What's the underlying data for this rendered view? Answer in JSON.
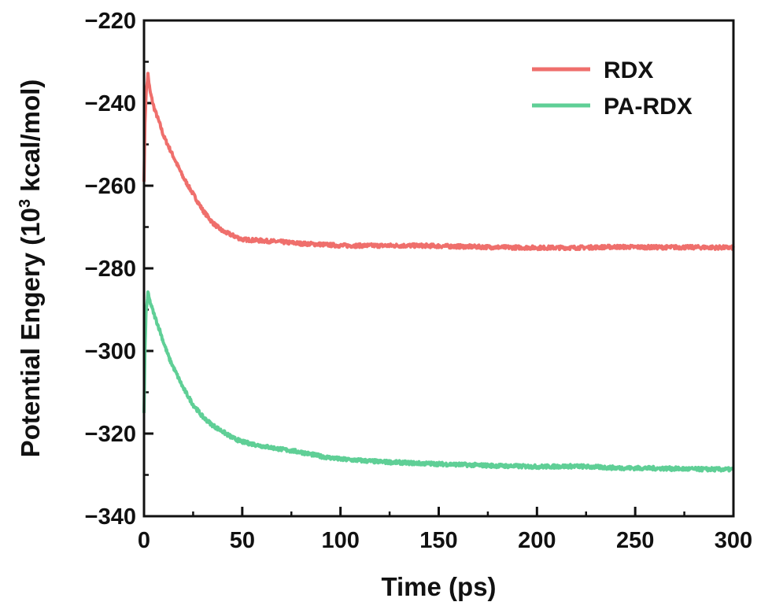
{
  "chart_data": {
    "type": "line",
    "xlabel": "Time (ps)",
    "ylabel": {
      "prefix": "Potential Engery (10",
      "sup": "3",
      "suffix": " kcal/mol)"
    },
    "xlim": [
      0,
      300
    ],
    "ylim": [
      -340,
      -220
    ],
    "xticks": [
      0,
      50,
      100,
      150,
      200,
      250,
      300
    ],
    "yticks": [
      -220,
      -240,
      -260,
      -280,
      -300,
      -320,
      -340
    ],
    "ytick_labels": [
      "−220",
      "−240",
      "−260",
      "−280",
      "−300",
      "−320",
      "−340"
    ],
    "grid": false,
    "legend_position": "top-right",
    "series": [
      {
        "name": "RDX",
        "color": "#ef6f6c",
        "x": [
          0,
          0.5,
          1,
          2,
          3,
          5,
          8,
          10,
          13,
          15,
          18,
          20,
          25,
          30,
          35,
          40,
          45,
          50,
          60,
          70,
          80,
          90,
          100,
          120,
          140,
          160,
          180,
          200,
          220,
          240,
          260,
          280,
          300
        ],
        "y": [
          -259,
          -245,
          -238,
          -233,
          -237,
          -241,
          -245,
          -248,
          -251,
          -253,
          -256,
          -258,
          -262,
          -266,
          -269,
          -271,
          -272,
          -273,
          -273.3,
          -273.6,
          -274,
          -274.2,
          -274.5,
          -274.5,
          -274.5,
          -274.7,
          -274.9,
          -275,
          -275,
          -274.8,
          -274.9,
          -274.9,
          -275
        ]
      },
      {
        "name": "PA-RDX",
        "color": "#5fcf96",
        "x": [
          0,
          0.5,
          1,
          2,
          3,
          5,
          8,
          10,
          13,
          15,
          18,
          20,
          25,
          30,
          35,
          40,
          45,
          50,
          60,
          70,
          80,
          90,
          100,
          120,
          140,
          160,
          180,
          200,
          220,
          240,
          260,
          280,
          300
        ],
        "y": [
          -315,
          -300,
          -291,
          -286,
          -288,
          -291,
          -295,
          -298,
          -302,
          -304,
          -307,
          -309,
          -313,
          -316,
          -318,
          -319.5,
          -321,
          -322,
          -323,
          -323.8,
          -324.5,
          -325.5,
          -326.2,
          -326.8,
          -327.2,
          -327.5,
          -327.8,
          -328,
          -327.9,
          -328.3,
          -328.4,
          -328.6,
          -328.7
        ]
      }
    ]
  }
}
